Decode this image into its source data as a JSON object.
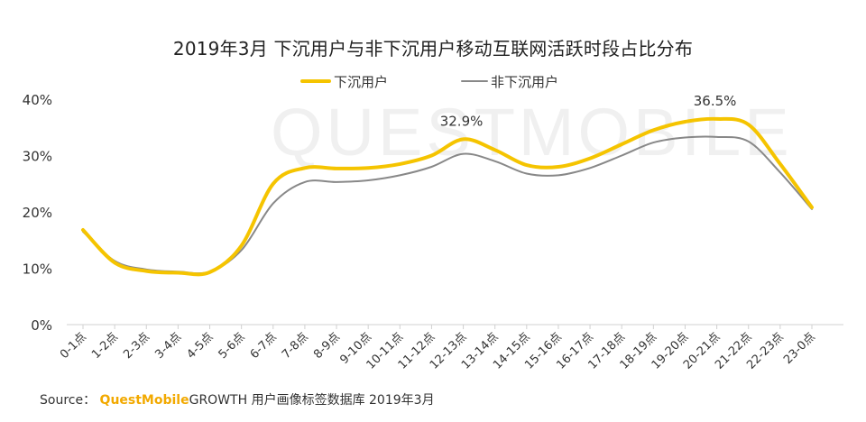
{
  "watermark": "QUESTMOBILE",
  "source": {
    "prefix": "Source：",
    "brand": "QuestMobile",
    "suffix": "GROWTH 用户画像标签数据库 2019年3月"
  },
  "chart_data": {
    "type": "line",
    "title": "2019年3月 下沉用户与非下沉用户移动互联网活跃时段占比分布",
    "categories": [
      "0-1点",
      "1-2点",
      "2-3点",
      "3-4点",
      "4-5点",
      "5-6点",
      "6-7点",
      "7-8点",
      "8-9点",
      "9-10点",
      "10-11点",
      "11-12点",
      "12-13点",
      "13-14点",
      "14-15点",
      "15-16点",
      "16-17点",
      "17-18点",
      "18-19点",
      "19-20点",
      "20-21点",
      "21-22点",
      "22-23点",
      "23-0点"
    ],
    "series": [
      {
        "name": "下沉用户",
        "color": "#F5C400",
        "values": [
          16.8,
          11.0,
          9.5,
          9.2,
          9.3,
          14.0,
          25.0,
          27.8,
          27.7,
          27.8,
          28.5,
          30.0,
          32.9,
          31.0,
          28.3,
          28.0,
          29.5,
          32.0,
          34.5,
          36.0,
          36.5,
          35.5,
          28.5,
          20.8
        ]
      },
      {
        "name": "非下沉用户",
        "color": "#888888",
        "values": [
          16.5,
          11.3,
          9.8,
          9.4,
          9.4,
          13.2,
          21.5,
          25.3,
          25.3,
          25.6,
          26.5,
          28.0,
          30.3,
          29.0,
          26.8,
          26.5,
          27.8,
          30.0,
          32.3,
          33.2,
          33.3,
          32.5,
          27.0,
          20.5
        ]
      }
    ],
    "annotations": [
      {
        "category": "12-13点",
        "series": "下沉用户",
        "text": "32.9%"
      },
      {
        "category": "20-21点",
        "series": "下沉用户",
        "text": "36.5%"
      }
    ],
    "yticks": [
      "0%",
      "10%",
      "20%",
      "30%",
      "40%"
    ],
    "ytick_values": [
      0,
      10,
      20,
      30,
      40
    ],
    "ylim": [
      0,
      40
    ],
    "grid": false,
    "legend_position": "top-center"
  }
}
